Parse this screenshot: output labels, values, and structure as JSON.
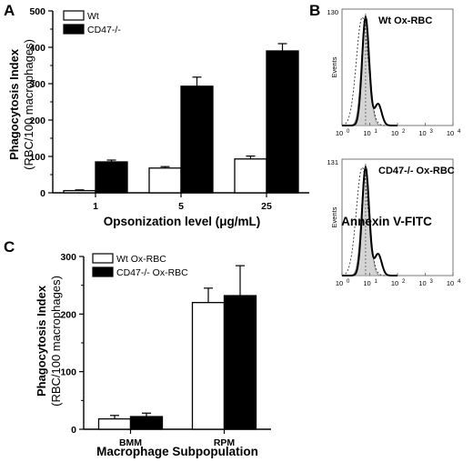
{
  "panels": {
    "a": "A",
    "b": "B",
    "c": "C"
  },
  "chart_data": [
    {
      "type": "bar",
      "panel": "A",
      "categories": [
        "1",
        "5",
        "25"
      ],
      "series": [
        {
          "name": "Wt",
          "values": [
            6,
            68,
            93
          ],
          "errors": [
            2,
            4,
            8
          ],
          "color": "#ffffff"
        },
        {
          "name": "CD47-/-",
          "values": [
            85,
            293,
            390
          ],
          "errors": [
            5,
            25,
            20
          ],
          "color": "#000000"
        }
      ],
      "xlabel": "Opsonization level (μg/mL)",
      "ylabel": "Phagocytosis Index",
      "ylabel2": "(RBC/100 macrophages)",
      "ylim": [
        0,
        500
      ],
      "yticks": [
        "0",
        "100",
        "200",
        "300",
        "400",
        "500"
      ],
      "legend": "top-left"
    },
    {
      "type": "histogram",
      "panel": "B",
      "plots": [
        {
          "title": "Wt Ox-RBC",
          "ymax": "130",
          "ylabel": "Events",
          "peak_log10": 0.85
        },
        {
          "title": "CD47-/- Ox-RBC",
          "ymax": "131",
          "ylabel": "Events",
          "peak_log10": 0.85
        }
      ],
      "xticks": [
        "10",
        "10",
        "10",
        "10",
        "10"
      ],
      "xtick_exponents": [
        "0",
        "1",
        "2",
        "3",
        "4"
      ],
      "xlabel": "Annexin V-FITC"
    },
    {
      "type": "bar",
      "panel": "C",
      "categories": [
        "BMM",
        "RPM"
      ],
      "series": [
        {
          "name": "Wt Ox-RBC",
          "values": [
            18,
            220
          ],
          "errors": [
            6,
            25
          ],
          "color": "#ffffff"
        },
        {
          "name": "CD47-/- Ox-RBC",
          "values": [
            22,
            232
          ],
          "errors": [
            6,
            52
          ],
          "color": "#000000"
        }
      ],
      "xlabel": "Macrophage Subpopulation",
      "ylabel": "Phagocytosis Index",
      "ylabel2": "(RBC/100 macrophages)",
      "ylim": [
        0,
        300
      ],
      "yticks": [
        "0",
        "100",
        "200",
        "300"
      ],
      "legend": "top-left"
    }
  ]
}
